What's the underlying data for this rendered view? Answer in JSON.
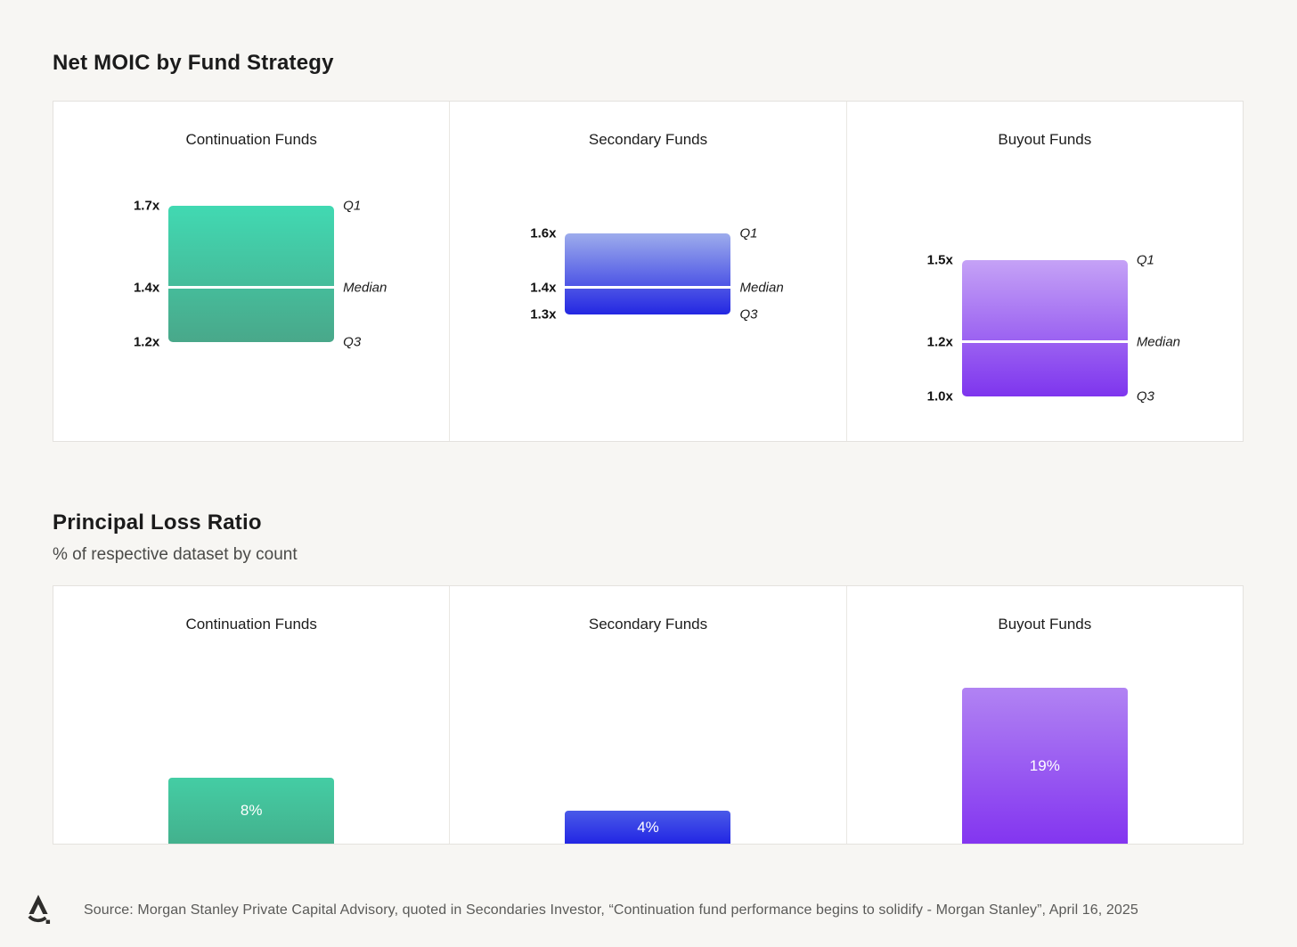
{
  "page_background": "#f7f6f3",
  "moic": {
    "title": "Net MOIC by Fund Strategy",
    "row_labels": {
      "q1": "Q1",
      "median": "Median",
      "q3": "Q3"
    },
    "panels": [
      {
        "title": "Continuation Funds",
        "q1": 1.7,
        "median": 1.4,
        "q3": 1.2,
        "q1_text": "1.7x",
        "median_text": "1.4x",
        "q3_text": "1.2x",
        "gradient_top": "#41d9b2",
        "gradient_bottom": "#49a88a"
      },
      {
        "title": "Secondary Funds",
        "q1": 1.6,
        "median": 1.4,
        "q3": 1.3,
        "q1_text": "1.6x",
        "median_text": "1.4x",
        "q3_text": "1.3x",
        "gradient_top": "#9dacec",
        "gradient_bottom": "#2327e2"
      },
      {
        "title": "Buyout Funds",
        "q1": 1.5,
        "median": 1.2,
        "q3": 1.0,
        "q1_text": "1.5x",
        "median_text": "1.2x",
        "q3_text": "1.0x",
        "gradient_top": "#c5a2f6",
        "gradient_bottom": "#7e35ee"
      }
    ]
  },
  "loss": {
    "title": "Principal Loss Ratio",
    "subtitle": "% of respective dataset by count",
    "panels": [
      {
        "title": "Continuation Funds",
        "value": 8,
        "label": "8%",
        "gradient_top": "#44cda4",
        "gradient_bottom": "#43b18d"
      },
      {
        "title": "Secondary Funds",
        "value": 4,
        "label": "4%",
        "gradient_top": "#4a5ae8",
        "gradient_bottom": "#2226e4"
      },
      {
        "title": "Buyout Funds",
        "value": 19,
        "label": "19%",
        "gradient_top": "#b183f3",
        "gradient_bottom": "#8335f0"
      }
    ]
  },
  "footer": {
    "logo_icon": "stylized-letter-a-logo",
    "source": "Source: Morgan Stanley Private Capital Advisory, quoted in Secondaries Investor, “Continuation fund performance begins to solidify - Morgan Stanley”, April 16, 2025"
  },
  "chart_data": [
    {
      "type": "bar",
      "subtype": "floating-range-quartiles",
      "title": "Net MOIC by Fund Strategy",
      "categories": [
        "Continuation Funds",
        "Secondary Funds",
        "Buyout Funds"
      ],
      "series": [
        {
          "name": "Q1",
          "values": [
            1.7,
            1.6,
            1.5
          ]
        },
        {
          "name": "Median",
          "values": [
            1.4,
            1.4,
            1.2
          ]
        },
        {
          "name": "Q3",
          "values": [
            1.2,
            1.3,
            1.0
          ]
        }
      ],
      "value_suffix": "x",
      "ylim": [
        1.0,
        1.7
      ],
      "grid": false,
      "legend_position": "inline-right-annotations",
      "colors": [
        "#45c29e",
        "#2d3de3",
        "#9257f2"
      ]
    },
    {
      "type": "bar",
      "title": "Principal Loss Ratio",
      "subtitle": "% of respective dataset by count",
      "categories": [
        "Continuation Funds",
        "Secondary Funds",
        "Buyout Funds"
      ],
      "values": [
        8,
        4,
        19
      ],
      "data_labels": [
        "8%",
        "4%",
        "19%"
      ],
      "value_suffix": "%",
      "ylim": [
        0,
        20
      ],
      "grid": false,
      "colors": [
        "#45c29e",
        "#2d3de3",
        "#9257f2"
      ]
    }
  ]
}
